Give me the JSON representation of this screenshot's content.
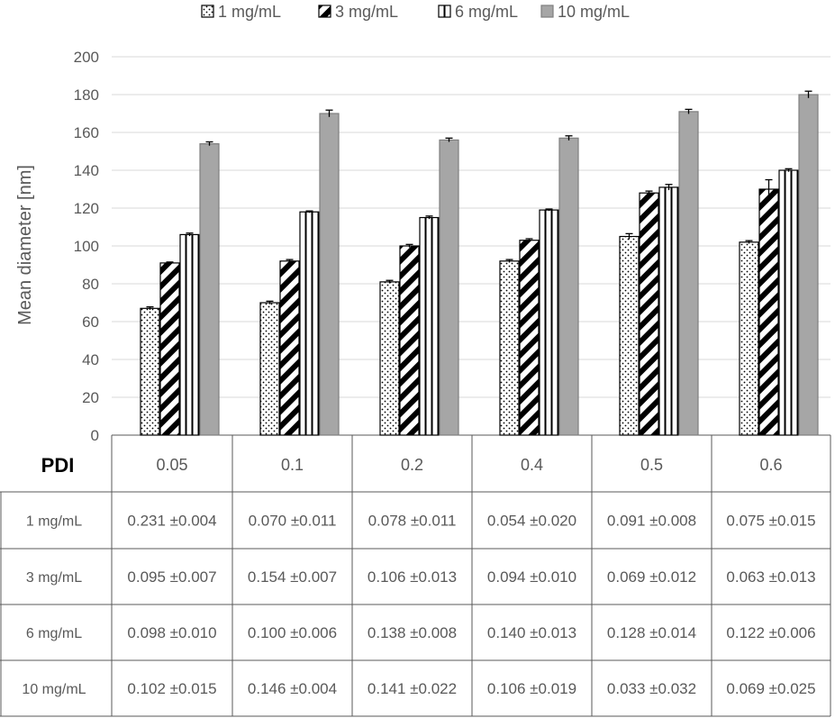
{
  "chart_data": {
    "type": "bar",
    "ylabel": "Mean diameter [nm]",
    "ylim": [
      0,
      200
    ],
    "ytick_step": 20,
    "grid": true,
    "legend_position": "top",
    "categories": [
      "0.05",
      "0.1",
      "0.2",
      "0.4",
      "0.5",
      "0.6"
    ],
    "series": [
      {
        "name": "1 mg/mL",
        "pattern": "dots",
        "values": [
          67,
          70,
          81,
          92,
          105,
          102
        ],
        "errors": [
          0.8,
          0.8,
          0.8,
          0.8,
          1.5,
          0.8
        ]
      },
      {
        "name": "3 mg/mL",
        "pattern": "diagonal-stripes",
        "values": [
          91,
          92,
          100,
          103,
          128,
          130
        ],
        "errors": [
          0.5,
          0.8,
          0.8,
          0.8,
          1.0,
          5.0
        ]
      },
      {
        "name": "6 mg/mL",
        "pattern": "vertical-stripes",
        "values": [
          106,
          118,
          115,
          119,
          131,
          140
        ],
        "errors": [
          0.8,
          0.5,
          0.8,
          0.5,
          1.5,
          0.8
        ]
      },
      {
        "name": "10 mg/mL",
        "pattern": "gray",
        "color": "#a6a6a6",
        "values": [
          154,
          170,
          156,
          157,
          171,
          180
        ],
        "errors": [
          1.0,
          1.8,
          1.0,
          1.2,
          1.2,
          1.8
        ]
      }
    ],
    "table": {
      "header": "PDI",
      "rows": [
        {
          "label": "1 mg/mL",
          "cells": [
            "0.231 ±0.004",
            "0.070 ±0.011",
            "0.078 ±0.011",
            "0.054 ±0.020",
            "0.091 ±0.008",
            "0.075 ±0.015"
          ]
        },
        {
          "label": "3 mg/mL",
          "cells": [
            "0.095 ±0.007",
            "0.154 ±0.007",
            "0.106 ±0.013",
            "0.094 ±0.010",
            "0.069 ±0.012",
            "0.063 ±0.013"
          ]
        },
        {
          "label": "6 mg/mL",
          "cells": [
            "0.098 ±0.010",
            "0.100 ±0.006",
            "0.138 ±0.008",
            "0.140 ±0.013",
            "0.128 ±0.014",
            "0.122 ±0.006"
          ]
        },
        {
          "label": "10 mg/mL",
          "cells": [
            "0.102 ±0.015",
            "0.146 ±0.004",
            "0.141 ±0.022",
            "0.106 ±0.019",
            "0.033 ±0.032",
            "0.069 ±0.025"
          ]
        }
      ]
    }
  }
}
